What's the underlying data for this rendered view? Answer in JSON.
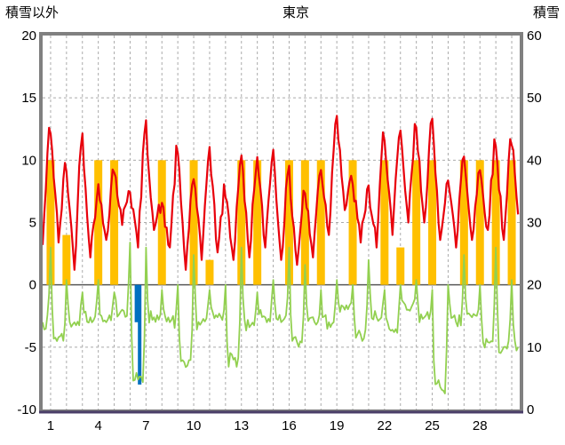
{
  "chart_data": {
    "type": "line",
    "title": "東京",
    "left_axis": {
      "label": "積雪以外",
      "min": -10,
      "max": 20,
      "ticks": [
        20,
        15,
        10,
        5,
        0,
        -5,
        -10
      ],
      "grid_values": [
        15,
        10,
        5,
        -5
      ]
    },
    "right_axis": {
      "label": "積雪",
      "min": 0,
      "max": 60,
      "ticks": [
        60,
        50,
        40,
        30,
        20,
        10,
        0
      ]
    },
    "x_axis": {
      "days": 30,
      "ticks": [
        1,
        4,
        7,
        10,
        13,
        16,
        19,
        22,
        25,
        28
      ]
    },
    "series": {
      "red_line": {
        "type": "line",
        "color": "#E8000B",
        "daily_max": [
          13.5,
          10.2,
          13.0,
          8.0,
          9.8,
          8.2,
          13.4,
          6.6,
          11.4,
          9.2,
          11.6,
          8.0,
          11.0,
          10.6,
          11.4,
          9.6,
          8.0,
          10.0,
          14.6,
          8.6,
          8.0,
          13.0,
          12.6,
          13.2,
          13.6,
          9.0,
          11.0,
          9.6,
          12.0,
          12.6
        ],
        "daily_min": [
          3.2,
          3.4,
          1.2,
          2.2,
          3.6,
          4.8,
          3.0,
          4.4,
          3.0,
          1.2,
          2.0,
          2.6,
          2.0,
          2.2,
          3.0,
          2.0,
          1.6,
          2.2,
          4.0,
          6.0,
          3.4,
          3.0,
          4.0,
          5.0,
          5.0,
          3.6,
          3.0,
          3.6,
          4.4,
          3.6
        ]
      },
      "green_line": {
        "type": "line",
        "color": "#92D050",
        "daily_max": [
          3.0,
          0.4,
          -0.6,
          0.4,
          -0.6,
          3.4,
          3.0,
          -0.4,
          0.0,
          2.4,
          -0.4,
          0.0,
          3.0,
          -0.6,
          0.4,
          3.0,
          1.6,
          -0.4,
          0.4,
          0.0,
          2.0,
          -0.4,
          0.0,
          0.4,
          -0.4,
          0.0,
          2.4,
          0.0,
          3.0,
          0.4
        ],
        "daily_min": [
          -3.0,
          -4.2,
          -3.0,
          -2.6,
          -3.0,
          -2.0,
          -7.6,
          -2.6,
          -3.0,
          -6.6,
          -3.0,
          -2.6,
          -6.0,
          -3.4,
          -2.6,
          -3.0,
          -4.6,
          -2.6,
          -3.0,
          -2.0,
          -4.0,
          -2.6,
          -3.6,
          -2.0,
          -2.6,
          -8.2,
          -3.0,
          -2.6,
          -4.6,
          -5.0
        ]
      },
      "orange_bars": {
        "type": "bar",
        "color": "#FFC000",
        "daily_values": [
          10,
          4,
          0,
          10,
          10,
          0,
          0,
          10,
          0,
          10,
          2,
          0,
          10,
          10,
          0,
          10,
          10,
          10,
          0,
          10,
          0,
          10,
          3,
          10,
          10,
          0,
          10,
          10,
          10,
          10
        ]
      },
      "blue_bars": {
        "type": "bar",
        "direction": "down",
        "color": "#0070C0",
        "events": [
          {
            "day": 6.4,
            "value": 3
          },
          {
            "day": 6.6,
            "value": 8
          }
        ]
      }
    },
    "colors": {
      "grid": "#ABABAB",
      "zero_line": "#595959",
      "border": "#808080",
      "bottom_axis": "#4A3E68",
      "text": "#000000",
      "plot_bg": "#FFFFFF"
    }
  }
}
